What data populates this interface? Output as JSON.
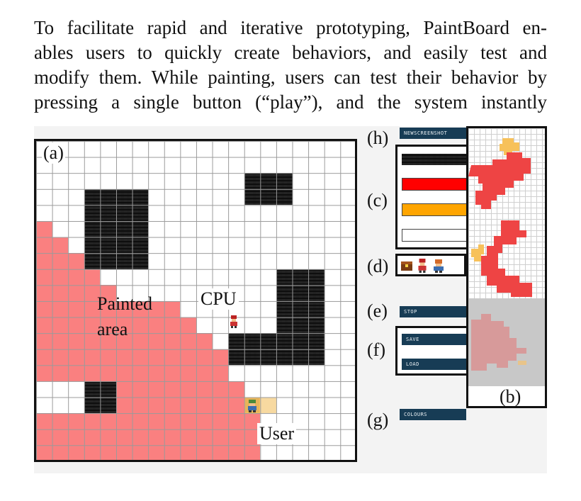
{
  "paragraph": {
    "lines": [
      "To facilitate rapid and iterative prototyping, PaintBoard en-",
      "ables users to quickly create behaviors, and easily test and",
      "modify them. While painting, users can test their behavior by",
      "pressing a single button (“play”), and the system instantly"
    ]
  },
  "figure": {
    "panel_labels": {
      "a": "(a)",
      "b": "(b)",
      "c": "(c)",
      "d": "(d)",
      "e": "(e)",
      "f": "(f)",
      "g": "(g)",
      "h": "(h)"
    },
    "annotations": {
      "painted_line1": "Painted",
      "painted_line2": "area",
      "cpu": "CPU",
      "user": "User"
    },
    "buttons": {
      "new_screenshot": "NEWSCREENSHOT",
      "stop": "STOP",
      "save": "SAVE",
      "load": "LOAD",
      "colours": "COLOURS"
    },
    "colors": {
      "painted": "#fa8080",
      "stone": "#3a3a3a",
      "button_bg": "#173c55",
      "swatch_red": "#ff0000",
      "swatch_orange": "#ffa500",
      "swatch_white": "#ffffff",
      "preview_red": "#ee4444",
      "preview_orange": "#f7c15a"
    },
    "icons": [
      "chest-icon",
      "cpu-character-icon",
      "user-character-icon"
    ]
  }
}
